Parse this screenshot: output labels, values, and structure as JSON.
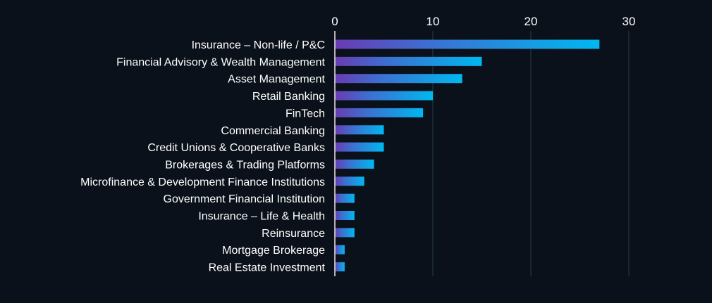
{
  "chart_data": {
    "type": "bar",
    "orientation": "horizontal",
    "title": "",
    "xlabel": "",
    "ylabel": "",
    "categories": [
      "Insurance – Non-life / P&C",
      "Financial Advisory & Wealth Management",
      "Asset Management",
      "Retail Banking",
      "FinTech",
      "Commercial Banking",
      "Credit Unions & Cooperative Banks",
      "Brokerages & Trading Platforms",
      "Microfinance & Development Finance Institutions",
      "Government Financial Institution",
      "Insurance – Life & Health",
      "Reinsurance",
      "Mortgage Brokerage",
      "Real Estate Investment"
    ],
    "values": [
      27,
      15,
      13,
      10,
      9,
      5,
      5,
      4,
      3,
      2,
      2,
      2,
      1,
      1
    ],
    "xlim": [
      0,
      33
    ],
    "xticks": [
      "0",
      "10",
      "20",
      "30"
    ],
    "x_axis_position": "top",
    "grid": true,
    "legend": "none",
    "colors": {
      "background": "#0b111b",
      "bar_gradient_start": "#6a3ab3",
      "bar_gradient_end": "#00b8f0",
      "text": "#ffffff",
      "grid": "#2a3c47"
    }
  }
}
